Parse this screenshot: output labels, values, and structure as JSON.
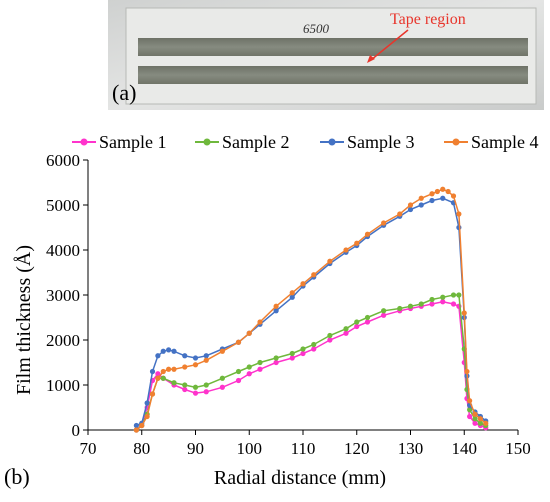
{
  "photo": {
    "panel_label": "(a)",
    "sample_label": "6500",
    "annotation": "Tape region",
    "annotation_color": "#e8352b"
  },
  "chart_data": {
    "type": "line",
    "panel_label": "(b)",
    "title": "",
    "xlabel": "Radial distance (mm)",
    "ylabel": "Film thickness (Å)",
    "xlim": [
      70,
      150
    ],
    "ylim": [
      0,
      6000
    ],
    "xticks": [
      70,
      80,
      90,
      100,
      110,
      120,
      130,
      140,
      150
    ],
    "yticks": [
      0,
      1000,
      2000,
      3000,
      4000,
      5000,
      6000
    ],
    "grid": false,
    "legend_position": "top",
    "series": [
      {
        "name": "Sample 1",
        "color": "#ff33cc",
        "x": [
          79,
          80,
          81,
          82,
          83,
          84,
          86,
          88,
          90,
          92,
          95,
          98,
          100,
          102,
          105,
          108,
          110,
          112,
          115,
          118,
          120,
          122,
          125,
          128,
          130,
          132,
          134,
          136,
          138,
          139,
          140,
          140.5,
          141,
          142,
          143,
          144
        ],
        "y": [
          0,
          100,
          500,
          1100,
          1250,
          1150,
          1000,
          900,
          820,
          850,
          950,
          1100,
          1250,
          1350,
          1500,
          1600,
          1700,
          1800,
          2000,
          2150,
          2300,
          2400,
          2550,
          2650,
          2700,
          2750,
          2800,
          2850,
          2800,
          2750,
          1500,
          700,
          300,
          150,
          100,
          50
        ]
      },
      {
        "name": "Sample 2",
        "color": "#6fb83c",
        "x": [
          79,
          80,
          81,
          82,
          83,
          84,
          86,
          88,
          90,
          92,
          95,
          98,
          100,
          102,
          105,
          108,
          110,
          112,
          115,
          118,
          120,
          122,
          125,
          128,
          130,
          132,
          134,
          136,
          138,
          139,
          140,
          140.5,
          141,
          142,
          143,
          144
        ],
        "y": [
          0,
          100,
          350,
          800,
          1150,
          1150,
          1050,
          1000,
          950,
          1000,
          1150,
          1300,
          1400,
          1500,
          1600,
          1700,
          1800,
          1900,
          2100,
          2250,
          2400,
          2500,
          2650,
          2700,
          2750,
          2800,
          2900,
          2950,
          3000,
          3000,
          1800,
          900,
          450,
          250,
          150,
          100
        ]
      },
      {
        "name": "Sample 3",
        "color": "#4472c4",
        "x": [
          79,
          80,
          81,
          82,
          83,
          84,
          85,
          86,
          88,
          90,
          92,
          95,
          98,
          100,
          102,
          105,
          108,
          110,
          112,
          115,
          118,
          120,
          122,
          125,
          128,
          130,
          132,
          134,
          136,
          138,
          139,
          140,
          140.5,
          141,
          142,
          143,
          144
        ],
        "y": [
          100,
          150,
          600,
          1300,
          1650,
          1750,
          1780,
          1750,
          1650,
          1600,
          1650,
          1800,
          1950,
          2150,
          2350,
          2650,
          2950,
          3200,
          3400,
          3700,
          3950,
          4100,
          4300,
          4550,
          4750,
          4900,
          5000,
          5100,
          5150,
          5050,
          4500,
          2500,
          1200,
          550,
          400,
          300,
          200
        ]
      },
      {
        "name": "Sample 4",
        "color": "#f08030",
        "x": [
          79,
          80,
          81,
          82,
          83,
          84,
          85,
          86,
          88,
          90,
          92,
          95,
          98,
          100,
          102,
          105,
          108,
          110,
          112,
          115,
          118,
          120,
          122,
          125,
          128,
          130,
          132,
          134,
          135,
          136,
          137,
          138,
          139,
          140,
          140.5,
          141,
          142,
          143,
          144
        ],
        "y": [
          0,
          100,
          300,
          800,
          1150,
          1300,
          1350,
          1350,
          1400,
          1450,
          1550,
          1750,
          1950,
          2150,
          2400,
          2750,
          3050,
          3250,
          3450,
          3750,
          4000,
          4150,
          4350,
          4600,
          4800,
          5000,
          5150,
          5250,
          5300,
          5350,
          5300,
          5200,
          4800,
          2600,
          1300,
          650,
          350,
          250,
          150
        ]
      }
    ]
  }
}
